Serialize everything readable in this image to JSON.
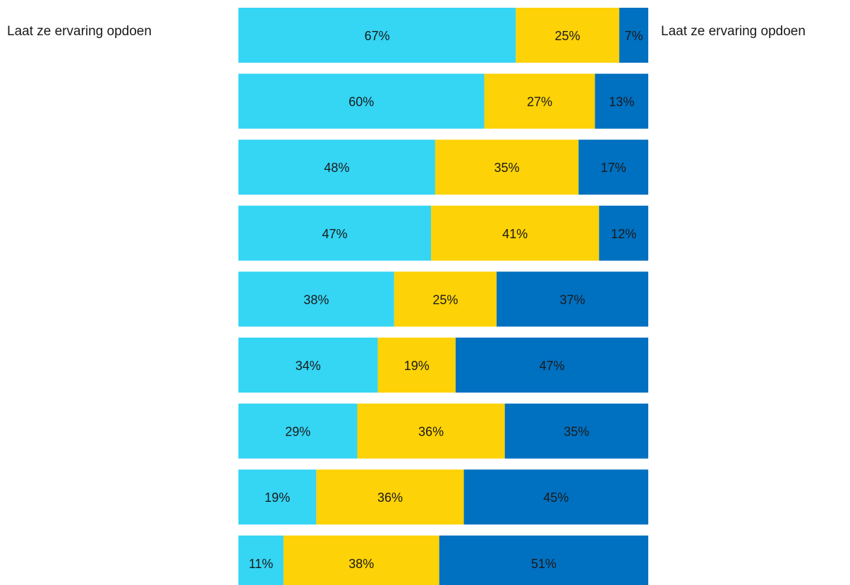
{
  "chart_data": {
    "type": "bar",
    "orientation": "horizontal",
    "stacked": true,
    "normalized": true,
    "title": "",
    "xlabel": "",
    "ylabel": "",
    "left_label": "Laat ze ervaring opdoen",
    "right_label": "Laat ze ervaring opdoen",
    "value_suffix": "%",
    "series": [
      {
        "color": "#35d5f4",
        "values": [
          67,
          60,
          48,
          47,
          38,
          34,
          29,
          19,
          11
        ]
      },
      {
        "color": "#fdd206",
        "values": [
          25,
          27,
          35,
          41,
          25,
          19,
          36,
          36,
          38
        ]
      },
      {
        "color": "#0070c0",
        "values": [
          7,
          13,
          17,
          12,
          37,
          47,
          35,
          45,
          51
        ]
      }
    ]
  }
}
